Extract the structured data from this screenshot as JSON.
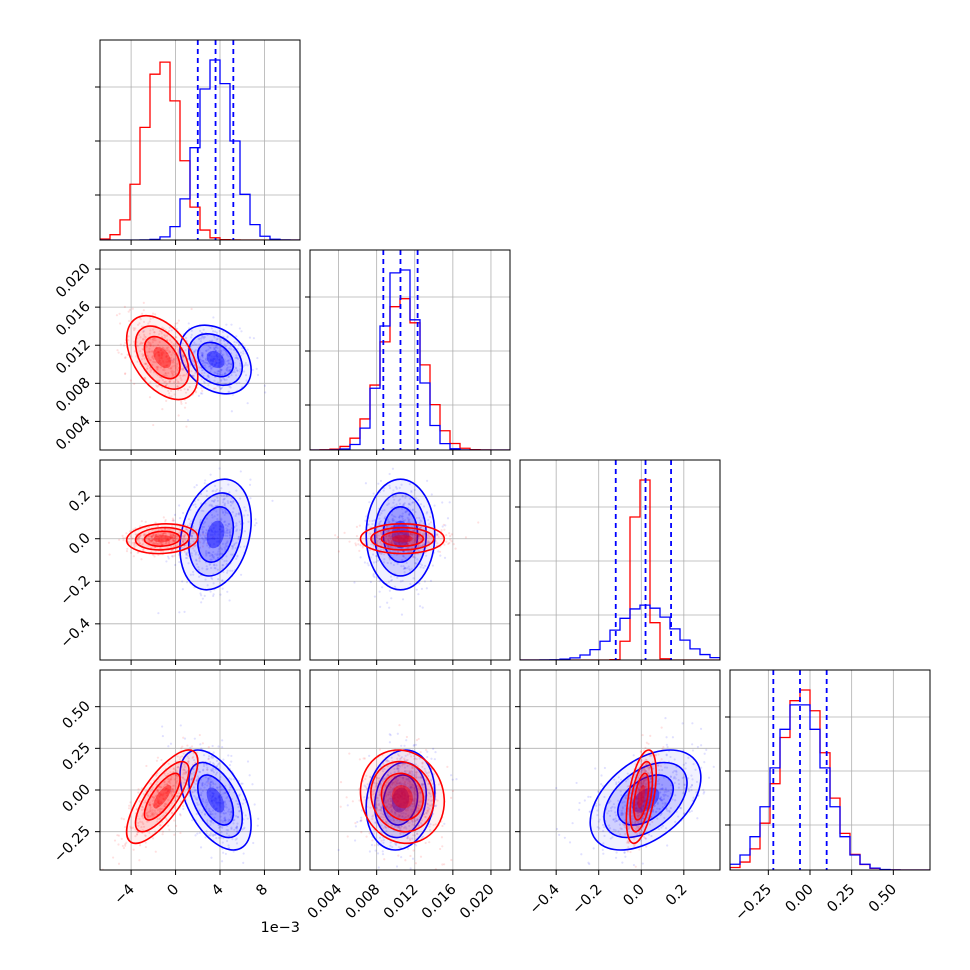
{
  "chart_data": {
    "type": "corner",
    "title": "",
    "parameter_labels": [
      "",
      "",
      "",
      ""
    ],
    "colors": {
      "sample_a": "#0000ff",
      "sample_b": "#ff0000",
      "grid": "#b0b0b0",
      "axis": "#000000"
    },
    "grid": true,
    "axes": [
      {
        "min": -0.0068,
        "max": 0.0112,
        "ticks": [
          -0.004,
          0,
          0.004,
          0.008
        ],
        "tick_labels": [
          "−4",
          "0",
          "4",
          "8"
        ],
        "offset_label": "1e−3"
      },
      {
        "min": 0.001,
        "max": 0.022,
        "ticks": [
          0.004,
          0.008,
          0.012,
          0.016,
          0.02
        ],
        "tick_labels": [
          "0.004",
          "0.008",
          "0.012",
          "0.016",
          "0.020"
        ]
      },
      {
        "min": -0.57,
        "max": 0.37,
        "ticks": [
          -0.4,
          -0.2,
          0.0,
          0.2
        ],
        "tick_labels": [
          "−0.4",
          "−0.2",
          "0.0",
          "0.2"
        ]
      },
      {
        "min": -0.48,
        "max": 0.72,
        "ticks": [
          -0.25,
          0.0,
          0.25,
          0.5
        ],
        "tick_labels": [
          "−0.25",
          "0.00",
          "0.25",
          "0.50"
        ]
      }
    ],
    "series": [
      {
        "name": "",
        "color": "#0000ff",
        "mean": [
          0.0036,
          0.0105,
          0.02,
          -0.06
        ],
        "std": [
          0.0016,
          0.0018,
          0.13,
          0.15
        ],
        "corr": [
          [
            1,
            -0.3,
            0.25,
            -0.5
          ],
          [
            -0.3,
            1,
            0.0,
            0.15
          ],
          [
            0.25,
            0.0,
            1,
            0.45
          ],
          [
            -0.5,
            0.15,
            0.45,
            1
          ]
        ]
      },
      {
        "name": "",
        "color": "#ff0000",
        "mean": [
          -0.0012,
          0.0107,
          0.0,
          -0.04
        ],
        "std": [
          0.0016,
          0.0022,
          0.035,
          0.14
        ],
        "corr": [
          [
            1,
            -0.45,
            0.1,
            0.75
          ],
          [
            -0.45,
            1,
            0.0,
            -0.1
          ],
          [
            0.1,
            0.0,
            1,
            0.5
          ],
          [
            0.75,
            -0.1,
            0.5,
            1
          ]
        ]
      }
    ],
    "quantile_lines": {
      "color": "#0000ff",
      "style": "dashed",
      "values": [
        [
          0.002,
          0.0036,
          0.0052
        ],
        [
          0.0087,
          0.0105,
          0.0123
        ],
        [
          -0.12,
          0.02,
          0.14
        ],
        [
          -0.22,
          -0.06,
          0.1
        ]
      ]
    }
  }
}
